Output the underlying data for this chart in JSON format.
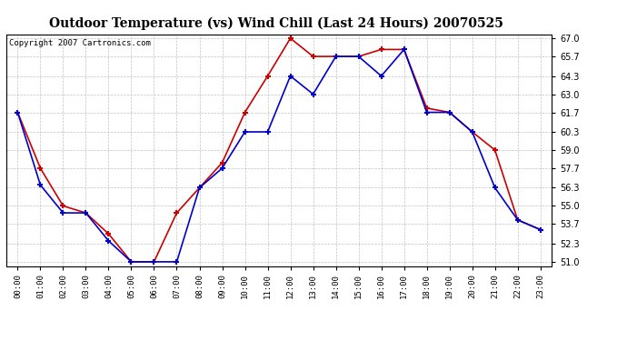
{
  "title": "Outdoor Temperature (vs) Wind Chill (Last 24 Hours) 20070525",
  "copyright": "Copyright 2007 Cartronics.com",
  "x_labels": [
    "00:00",
    "01:00",
    "02:00",
    "03:00",
    "04:00",
    "05:00",
    "06:00",
    "07:00",
    "08:00",
    "09:00",
    "10:00",
    "11:00",
    "12:00",
    "13:00",
    "14:00",
    "15:00",
    "16:00",
    "17:00",
    "18:00",
    "19:00",
    "20:00",
    "21:00",
    "22:00",
    "23:00"
  ],
  "temp": [
    61.7,
    57.7,
    55.0,
    54.5,
    53.0,
    51.0,
    51.0,
    54.5,
    56.3,
    58.1,
    61.7,
    64.3,
    67.0,
    65.7,
    65.7,
    65.7,
    66.2,
    66.2,
    62.0,
    61.7,
    60.3,
    59.0,
    54.0,
    53.3
  ],
  "wind_chill": [
    61.7,
    56.5,
    54.5,
    54.5,
    52.5,
    51.0,
    51.0,
    51.0,
    56.3,
    57.7,
    60.3,
    60.3,
    64.3,
    63.0,
    65.7,
    65.7,
    64.3,
    66.2,
    61.7,
    61.7,
    60.3,
    56.3,
    54.0,
    53.3
  ],
  "ylim": [
    50.7,
    67.3
  ],
  "yticks": [
    51.0,
    52.3,
    53.7,
    55.0,
    56.3,
    57.7,
    59.0,
    60.3,
    61.7,
    63.0,
    64.3,
    65.7,
    67.0
  ],
  "temp_color": "#cc0000",
  "wind_chill_color": "#0000cc",
  "bg_color": "#ffffff",
  "grid_color": "#bbbbbb",
  "title_fontsize": 10,
  "copyright_fontsize": 6.5,
  "marker": "+",
  "marker_size": 5,
  "linewidth": 1.2
}
